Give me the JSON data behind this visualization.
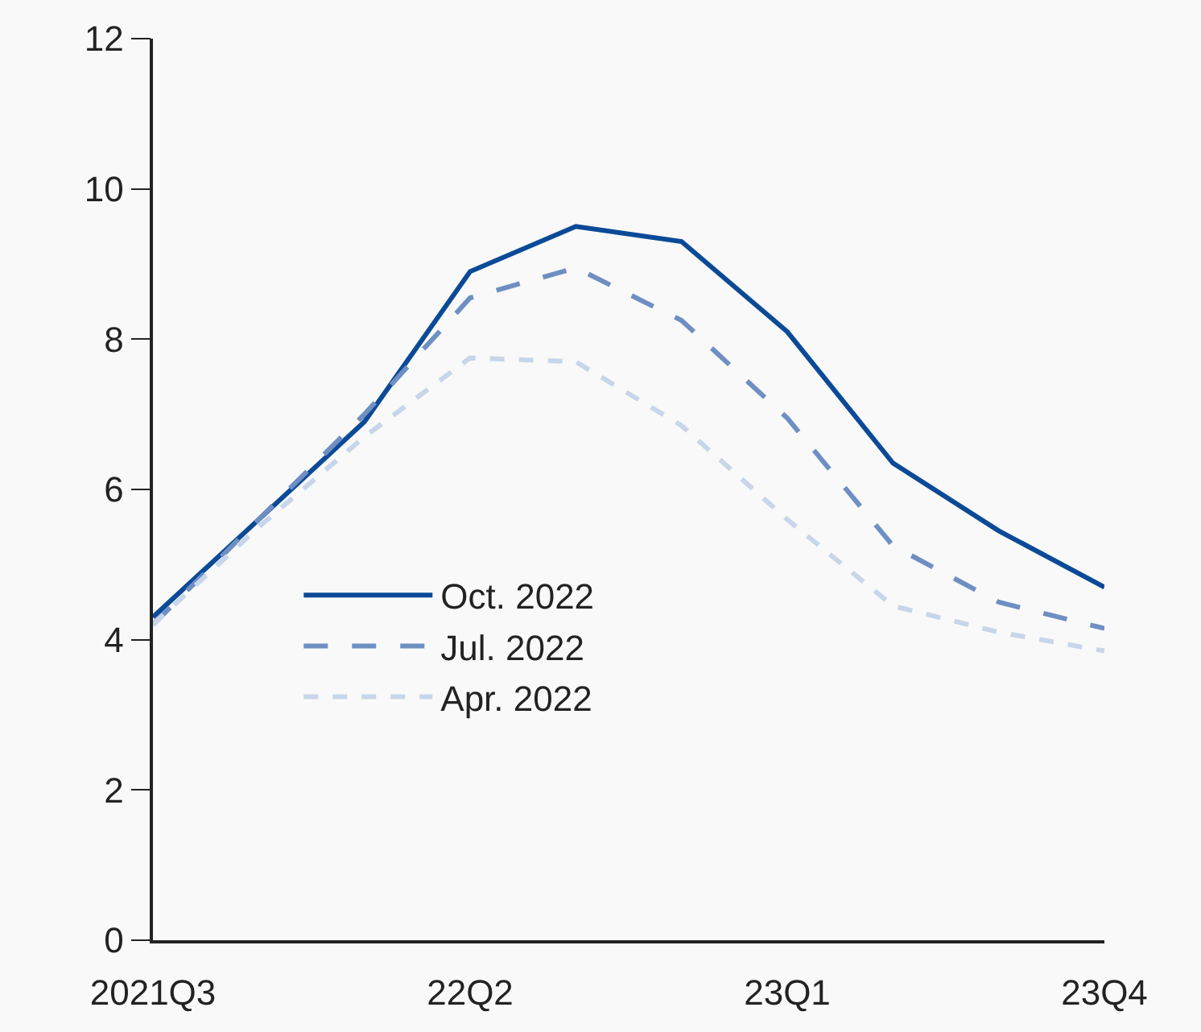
{
  "chart_data": {
    "type": "line",
    "categories": [
      "2021Q3",
      null,
      null,
      "22Q2",
      null,
      null,
      "23Q1",
      null,
      null,
      "23Q4"
    ],
    "series": [
      {
        "name": "Oct. 2022",
        "color": "#0b4a97",
        "line_style": "solid",
        "values": [
          4.3,
          5.6,
          6.9,
          8.9,
          9.5,
          9.3,
          8.1,
          6.35,
          5.45,
          4.7
        ]
      },
      {
        "name": "Jul. 2022",
        "color": "#6e8fc2",
        "line_style": "dashed",
        "values": [
          4.2,
          5.6,
          7.0,
          8.55,
          8.95,
          8.25,
          6.95,
          5.25,
          4.5,
          4.15
        ]
      },
      {
        "name": "Apr. 2022",
        "color": "#c7d6ea",
        "line_style": "dashed",
        "values": [
          4.2,
          5.5,
          6.7,
          7.75,
          7.7,
          6.85,
          5.6,
          4.45,
          4.1,
          3.85
        ]
      }
    ],
    "ylim": [
      0,
      12
    ],
    "yticks": [
      0,
      2,
      4,
      6,
      8,
      10,
      12
    ],
    "grid": false,
    "legend": "bottom left",
    "marker": "none"
  }
}
